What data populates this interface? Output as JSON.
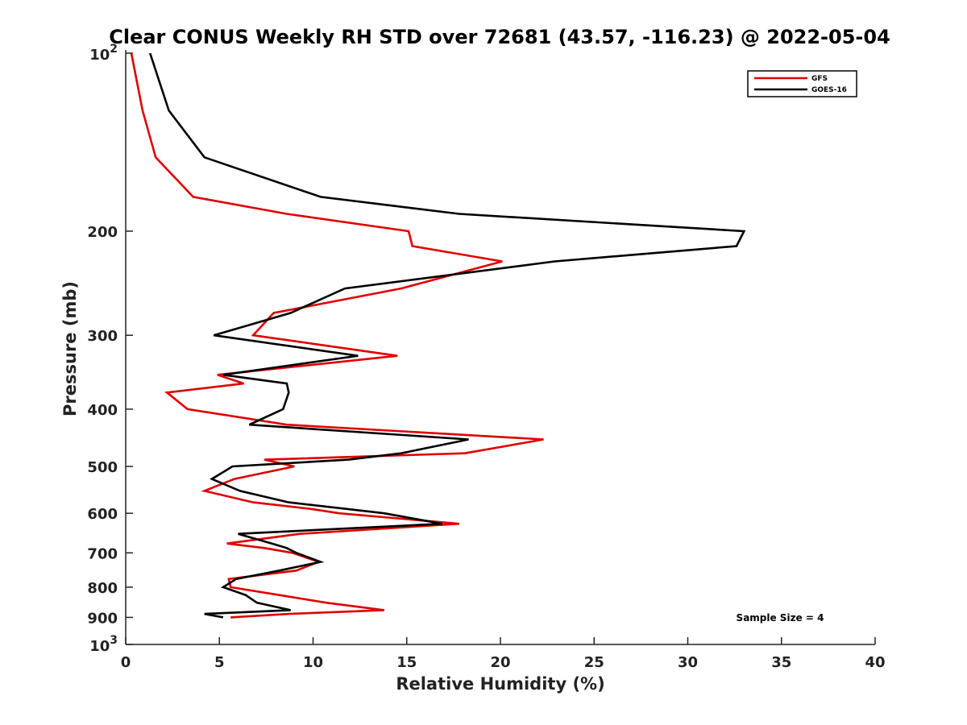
{
  "chart_data": {
    "type": "line",
    "title": "Clear CONUS Weekly RH STD over 72681 (43.57, -116.23) @ 2022-05-04",
    "xlabel": "Relative Humidity (%)",
    "ylabel": "Pressure (mb)",
    "xlim": [
      0,
      40
    ],
    "ylim": [
      100,
      1000
    ],
    "y_scale": "log",
    "y_reversed": true,
    "grid": false,
    "legend_position": "top-right",
    "x_ticks": [
      0,
      5,
      10,
      15,
      20,
      25,
      30,
      35,
      40
    ],
    "y_ticks": [
      {
        "value": 100,
        "base": "10",
        "exp": "2"
      },
      {
        "value": 200,
        "label": "200"
      },
      {
        "value": 300,
        "label": "300"
      },
      {
        "value": 400,
        "label": "400"
      },
      {
        "value": 500,
        "label": "500"
      },
      {
        "value": 600,
        "label": "600"
      },
      {
        "value": 700,
        "label": "700"
      },
      {
        "value": 800,
        "label": "800"
      },
      {
        "value": 900,
        "label": "900"
      },
      {
        "value": 1000,
        "base": "10",
        "exp": "3"
      }
    ],
    "series": [
      {
        "name": "GFS",
        "color": "#e00000",
        "points": [
          [
            0.3,
            100
          ],
          [
            0.9,
            125
          ],
          [
            1.6,
            150
          ],
          [
            3.6,
            175
          ],
          [
            8.6,
            187
          ],
          [
            15.1,
            200
          ],
          [
            15.3,
            212
          ],
          [
            20.1,
            225
          ],
          [
            14.7,
            250
          ],
          [
            7.9,
            275
          ],
          [
            6.8,
            300
          ],
          [
            14.5,
            325
          ],
          [
            4.9,
            350
          ],
          [
            6.3,
            362
          ],
          [
            2.2,
            375
          ],
          [
            3.3,
            400
          ],
          [
            8.6,
            425
          ],
          [
            22.3,
            450
          ],
          [
            18.1,
            475
          ],
          [
            7.4,
            487
          ],
          [
            9.0,
            500
          ],
          [
            5.8,
            525
          ],
          [
            4.2,
            550
          ],
          [
            6.8,
            575
          ],
          [
            9.9,
            590
          ],
          [
            11.4,
            600
          ],
          [
            17.8,
            625
          ],
          [
            9.3,
            650
          ],
          [
            5.4,
            675
          ],
          [
            7.4,
            687
          ],
          [
            8.9,
            700
          ],
          [
            10.3,
            725
          ],
          [
            9.1,
            750
          ],
          [
            5.5,
            775
          ],
          [
            5.6,
            800
          ],
          [
            8.2,
            825
          ],
          [
            10.7,
            850
          ],
          [
            13.8,
            875
          ],
          [
            8.7,
            888
          ],
          [
            5.6,
            900
          ]
        ]
      },
      {
        "name": "GOES-16",
        "color": "#000000",
        "points": [
          [
            1.3,
            100
          ],
          [
            2.3,
            125
          ],
          [
            4.2,
            150
          ],
          [
            10.4,
            175
          ],
          [
            17.8,
            187
          ],
          [
            33.0,
            200
          ],
          [
            32.6,
            212
          ],
          [
            22.9,
            225
          ],
          [
            11.7,
            250
          ],
          [
            8.8,
            275
          ],
          [
            4.7,
            300
          ],
          [
            12.4,
            325
          ],
          [
            5.2,
            350
          ],
          [
            8.6,
            362
          ],
          [
            8.7,
            375
          ],
          [
            8.4,
            400
          ],
          [
            6.6,
            425
          ],
          [
            18.3,
            450
          ],
          [
            14.7,
            475
          ],
          [
            11.9,
            487
          ],
          [
            5.7,
            500
          ],
          [
            4.6,
            525
          ],
          [
            6.1,
            550
          ],
          [
            8.7,
            575
          ],
          [
            11.8,
            590
          ],
          [
            13.8,
            600
          ],
          [
            16.9,
            625
          ],
          [
            6.0,
            650
          ],
          [
            7.8,
            675
          ],
          [
            8.6,
            687
          ],
          [
            9.1,
            700
          ],
          [
            10.4,
            725
          ],
          [
            8.2,
            750
          ],
          [
            5.9,
            775
          ],
          [
            5.2,
            800
          ],
          [
            6.4,
            825
          ],
          [
            7.0,
            850
          ],
          [
            8.8,
            875
          ],
          [
            4.2,
            888
          ],
          [
            5.2,
            900
          ]
        ]
      }
    ],
    "annotation": "Sample Size = 4"
  }
}
